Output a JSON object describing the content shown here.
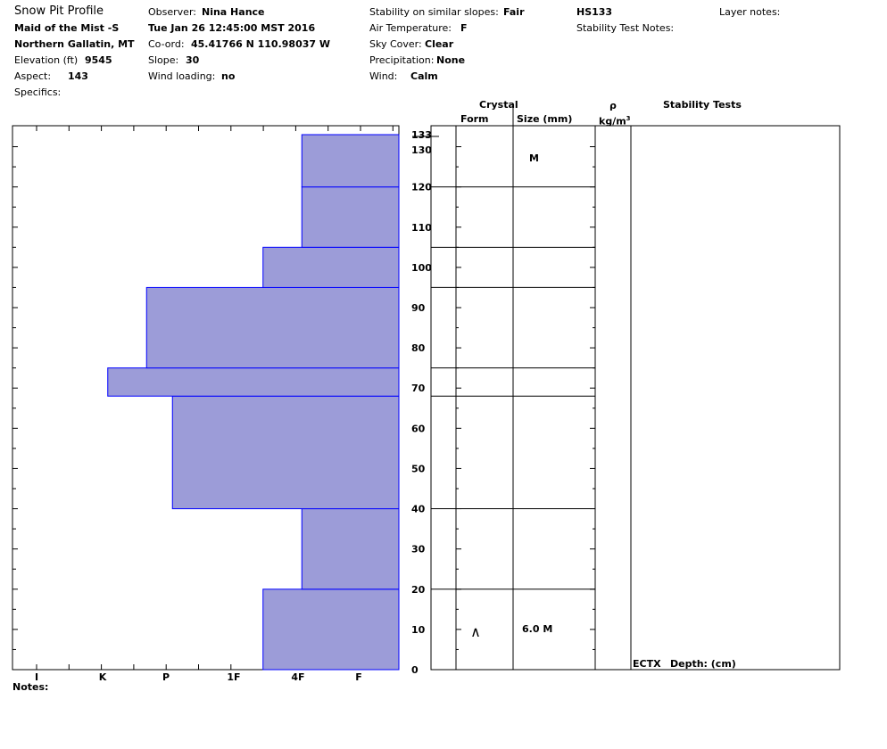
{
  "header": {
    "title": "Snow Pit Profile",
    "location": "Maid of the Mist -S",
    "region": "Northern Gallatin, MT",
    "elevation_label": "Elevation (ft)",
    "elevation_value": "9545",
    "aspect_label": "Aspect:",
    "aspect_value": "143",
    "specifics_label": "Specifics:",
    "observer_label": "Observer:",
    "observer_value": "Nina Hance",
    "datetime": "Tue Jan 26 12:45:00 MST 2016",
    "coord_label": "Co-ord:",
    "coord_value": "45.41766 N 110.98037 W",
    "slope_label": "Slope:",
    "slope_value": "30",
    "wind_loading_label": "Wind loading:",
    "wind_loading_value": "no",
    "stability_label": "Stability on similar slopes:",
    "stability_value": "Fair",
    "air_temp_label": "Air Temperature:",
    "air_temp_value": "F",
    "sky_label": "Sky Cover:",
    "sky_value": "Clear",
    "precip_label": "Precipitation:",
    "precip_value": "None",
    "wind_label": "Wind:",
    "wind_value": "Calm",
    "hs": "HS133",
    "stability_notes_label": "Stability Test Notes:",
    "layer_notes_label": "Layer notes:"
  },
  "columns": {
    "crystal": "Crystal",
    "form": "Form",
    "size": "Size (mm)",
    "rho": "ρ",
    "density_unit": "kg/m",
    "density_exp": "3",
    "stability_tests": "Stability Tests"
  },
  "footer": {
    "notes_label": "Notes:",
    "ectx": "ECTX",
    "depth_label": "Depth: (cm)"
  },
  "chart_data": {
    "type": "bar",
    "description_axis": "hardness profile",
    "x_tick_labels": [
      "I",
      "K",
      "P",
      "1F",
      "4F",
      "F"
    ],
    "y_ticks": [
      0,
      10,
      20,
      30,
      40,
      50,
      60,
      70,
      80,
      90,
      100,
      110,
      120,
      130,
      133
    ],
    "ylim": [
      0,
      133
    ],
    "snow_height": 133,
    "layers": [
      {
        "bottom": 0,
        "top": 20,
        "hardness_index": 2.1
      },
      {
        "bottom": 20,
        "top": 40,
        "hardness_index": 1.5
      },
      {
        "bottom": 40,
        "top": 68,
        "hardness_index": 3.5
      },
      {
        "bottom": 68,
        "top": 75,
        "hardness_index": 4.5
      },
      {
        "bottom": 75,
        "top": 95,
        "hardness_index": 3.9
      },
      {
        "bottom": 95,
        "top": 105,
        "hardness_index": 2.1
      },
      {
        "bottom": 105,
        "top": 120,
        "hardness_index": 1.5
      },
      {
        "bottom": 120,
        "top": 133,
        "hardness_index": 1.5
      }
    ],
    "crystal_rows": [
      {
        "depth": 127,
        "form": "",
        "size": "M"
      },
      {
        "depth": 10,
        "form": "∧",
        "size": "6.0 M"
      }
    ],
    "fill_color": "#9c9cd8",
    "edge_color": "#0000ff"
  }
}
